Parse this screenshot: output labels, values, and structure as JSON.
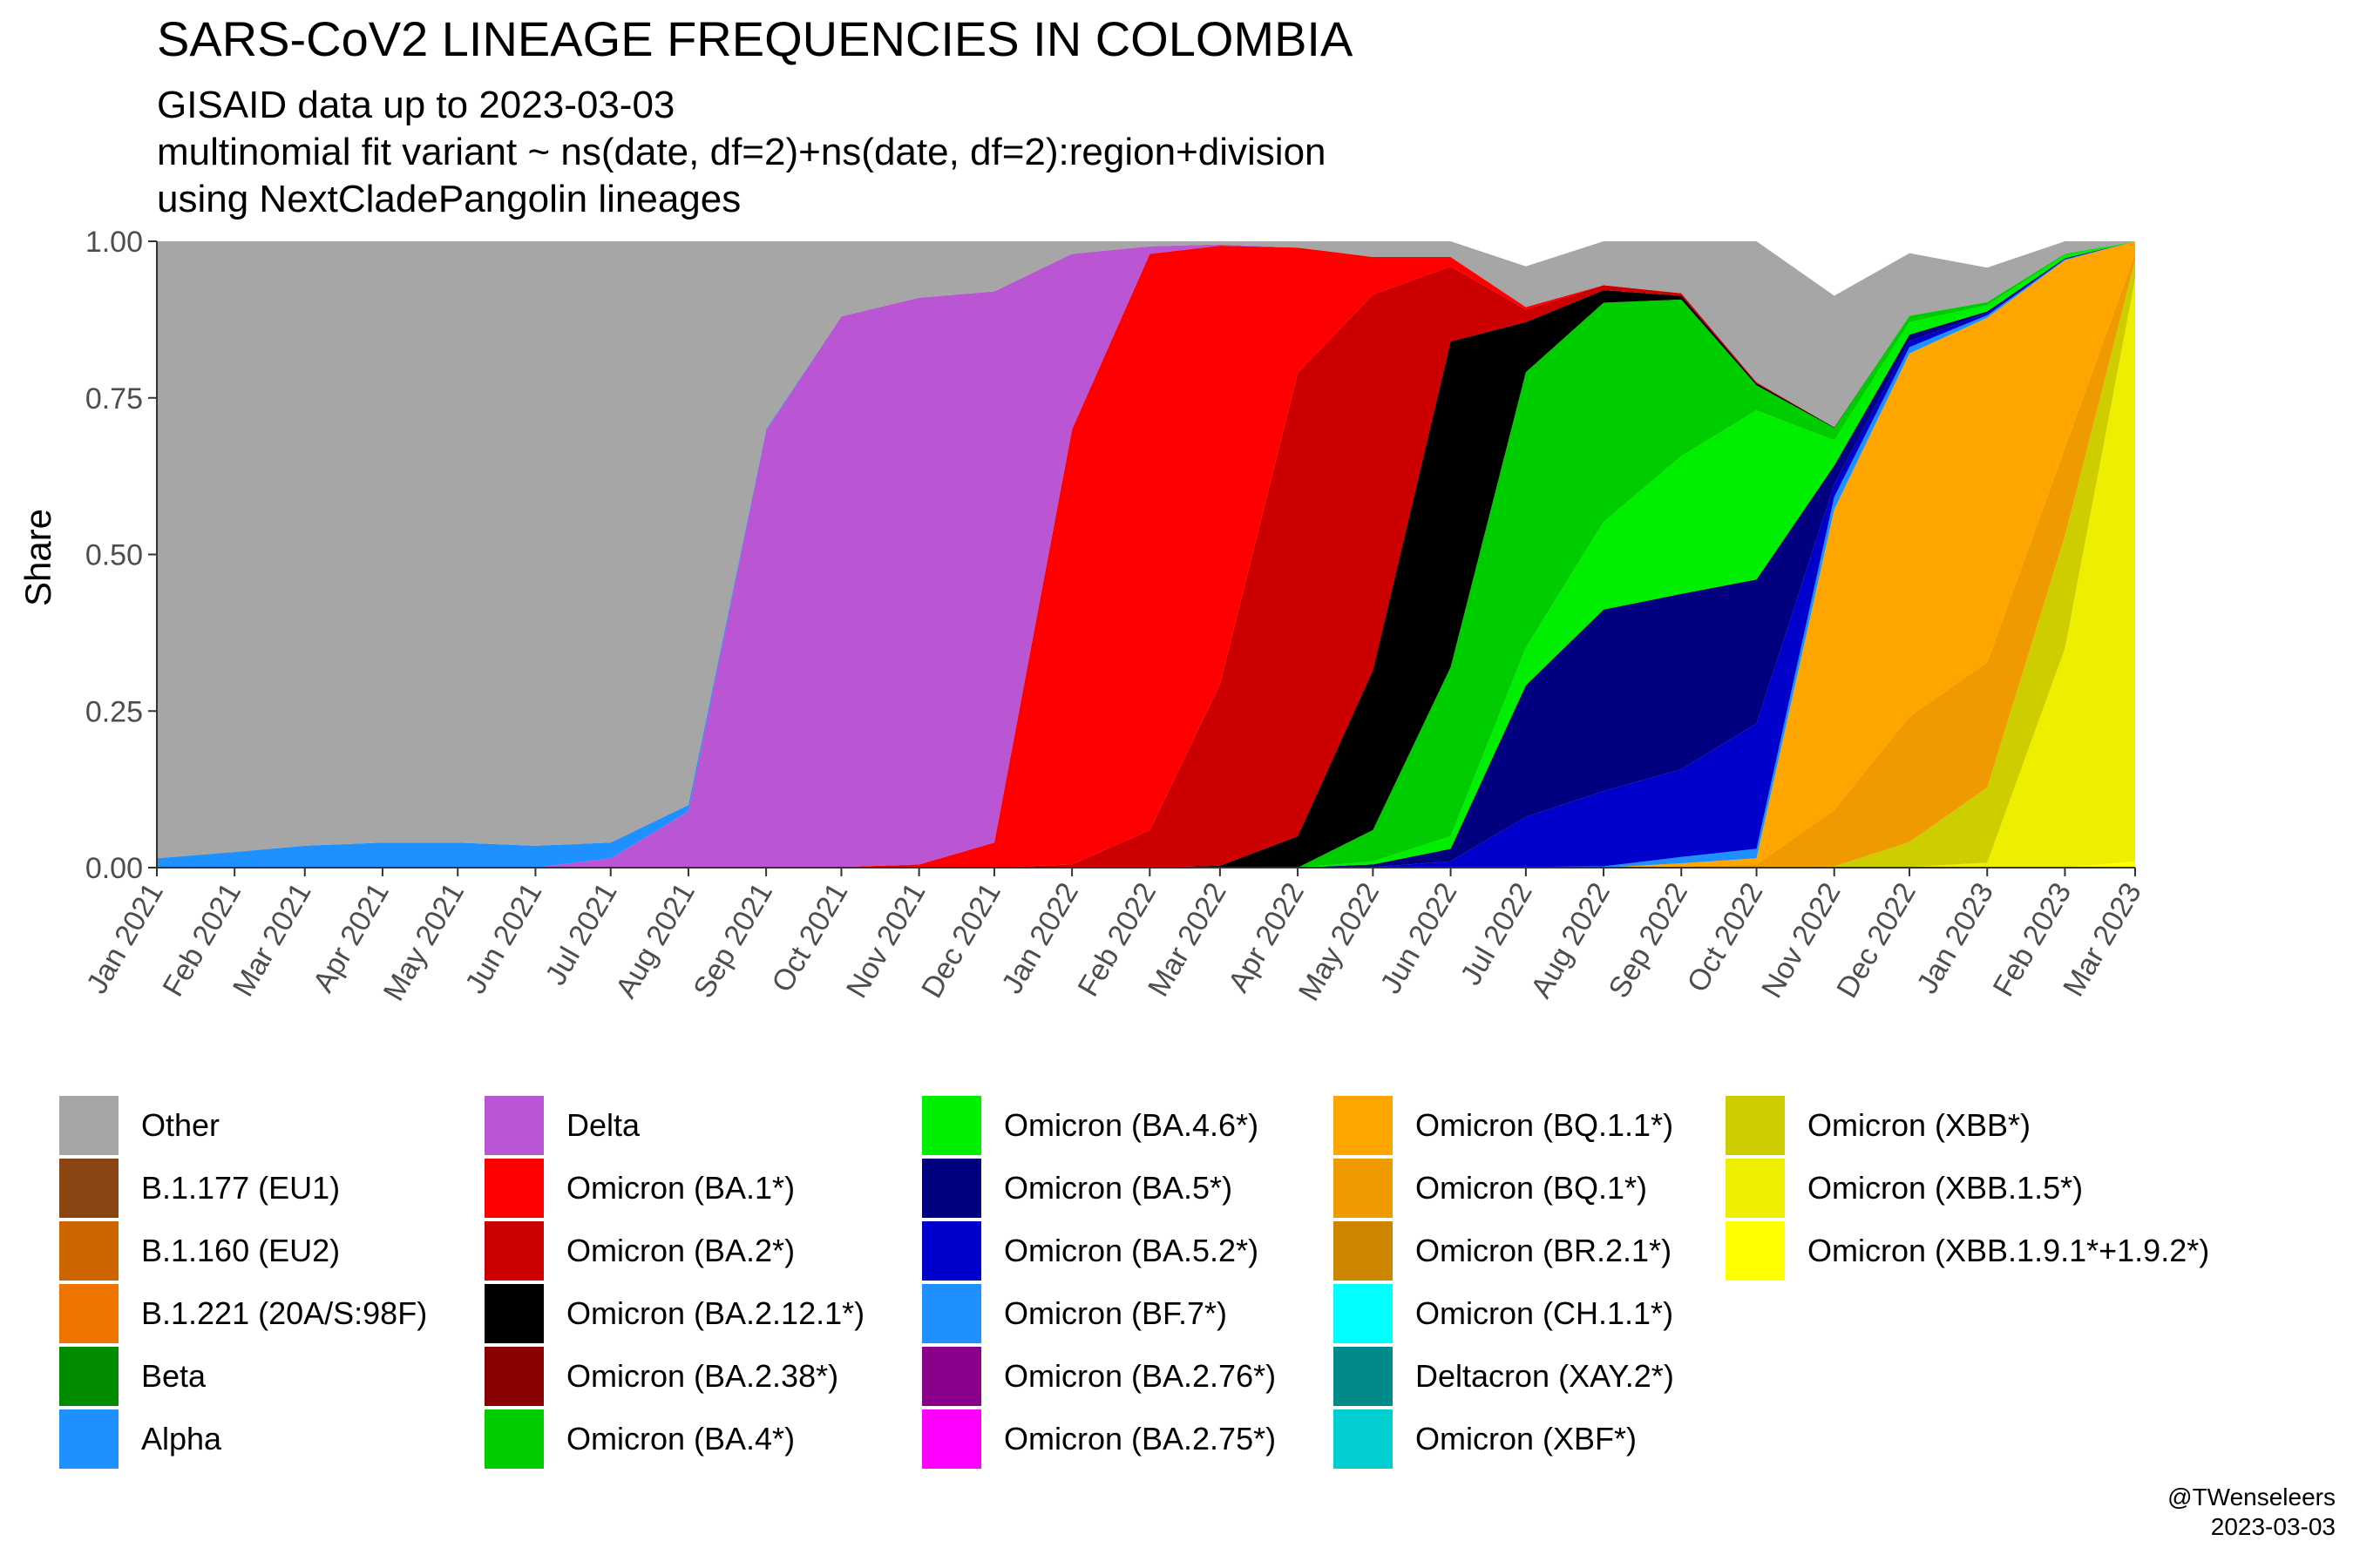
{
  "chart_data": {
    "type": "area",
    "stacked": true,
    "title": "SARS-CoV2 LINEAGE FREQUENCIES IN COLOMBIA",
    "subtitle": [
      "GISAID data up to 2023-03-03",
      "multinomial fit variant ~ ns(date, df=2)+ns(date, df=2):region+division",
      "using NextCladePangolin lineages"
    ],
    "ylabel": "Share",
    "ylim": [
      0,
      1
    ],
    "yticks": [
      "0.00",
      "0.25",
      "0.50",
      "0.75",
      "1.00"
    ],
    "xticks": [
      "Jan 2021",
      "Feb 2021",
      "Mar 2021",
      "Apr 2021",
      "May 2021",
      "Jun 2021",
      "Jul 2021",
      "Aug 2021",
      "Sep 2021",
      "Oct 2021",
      "Nov 2021",
      "Dec 2021",
      "Jan 2022",
      "Feb 2022",
      "Mar 2022",
      "Apr 2022",
      "May 2022",
      "Jun 2022",
      "Jul 2022",
      "Aug 2022",
      "Sep 2022",
      "Oct 2022",
      "Nov 2022",
      "Dec 2022",
      "Jan 2023",
      "Feb 2023",
      "Mar 2023"
    ],
    "x": [
      "2021-01-01",
      "2021-02-01",
      "2021-03-01",
      "2021-04-01",
      "2021-05-01",
      "2021-06-01",
      "2021-07-01",
      "2021-08-01",
      "2021-09-01",
      "2021-10-01",
      "2021-11-01",
      "2021-12-01",
      "2022-01-01",
      "2022-02-01",
      "2022-03-01",
      "2022-04-01",
      "2022-05-01",
      "2022-06-01",
      "2022-07-01",
      "2022-08-01",
      "2022-09-01",
      "2022-10-01",
      "2022-11-01",
      "2022-12-01",
      "2023-01-01",
      "2023-02-01",
      "2023-03-01"
    ],
    "grid": false,
    "legend_position": "bottom",
    "series": [
      {
        "name": "Other",
        "color": "#A6A6A6",
        "values": [
          0.985,
          0.975,
          0.965,
          0.96,
          0.96,
          0.965,
          0.96,
          0.9,
          0.3,
          0.12,
          0.09,
          0.08,
          0.02,
          0.008,
          0.005,
          0.01,
          0.025,
          0.045,
          0.065,
          0.075,
          0.11,
          0.24,
          0.21,
          0.1,
          0.055,
          0.02,
          0.0
        ]
      },
      {
        "name": "B.1.177 (EU1)",
        "color": "#8B4513",
        "values": [
          0,
          0,
          0,
          0,
          0,
          0,
          0,
          0,
          0,
          0,
          0,
          0,
          0,
          0,
          0,
          0,
          0,
          0,
          0,
          0,
          0,
          0,
          0,
          0,
          0,
          0,
          0
        ]
      },
      {
        "name": "B.1.160 (EU2)",
        "color": "#CD6600",
        "values": [
          0,
          0,
          0,
          0,
          0,
          0,
          0,
          0,
          0,
          0,
          0,
          0,
          0,
          0,
          0,
          0,
          0,
          0,
          0,
          0,
          0,
          0,
          0,
          0,
          0,
          0,
          0
        ]
      },
      {
        "name": "B.1.221 (20A/S:98F)",
        "color": "#EE7600",
        "values": [
          0,
          0,
          0,
          0,
          0,
          0,
          0,
          0,
          0,
          0,
          0,
          0,
          0,
          0,
          0,
          0,
          0,
          0,
          0,
          0,
          0,
          0,
          0,
          0,
          0,
          0,
          0
        ]
      },
      {
        "name": "Beta",
        "color": "#008B00",
        "values": [
          0,
          0,
          0,
          0,
          0,
          0,
          0,
          0,
          0,
          0,
          0,
          0,
          0,
          0,
          0,
          0,
          0,
          0,
          0,
          0,
          0,
          0,
          0,
          0,
          0,
          0,
          0
        ]
      },
      {
        "name": "Alpha",
        "color": "#1E90FF",
        "values": [
          0.015,
          0.025,
          0.035,
          0.04,
          0.04,
          0.035,
          0.025,
          0.01,
          0.002,
          0,
          0,
          0,
          0,
          0,
          0,
          0,
          0,
          0,
          0,
          0,
          0,
          0,
          0,
          0,
          0,
          0,
          0
        ]
      },
      {
        "name": "Delta",
        "color": "#BA55D3",
        "values": [
          0,
          0,
          0,
          0,
          0,
          0,
          0.015,
          0.09,
          0.698,
          0.879,
          0.905,
          0.88,
          0.28,
          0.012,
          0.002,
          0,
          0,
          0,
          0,
          0,
          0,
          0,
          0,
          0,
          0,
          0,
          0
        ]
      },
      {
        "name": "Omicron (BA.1*)",
        "color": "#FF0000",
        "values": [
          0,
          0,
          0,
          0,
          0,
          0,
          0,
          0,
          0,
          0.001,
          0.005,
          0.04,
          0.695,
          0.92,
          0.7,
          0.2,
          0.06,
          0.015,
          0.004,
          0,
          0,
          0,
          0,
          0,
          0,
          0,
          0
        ]
      },
      {
        "name": "Omicron (BA.2*)",
        "color": "#CC0000",
        "values": [
          0,
          0,
          0,
          0,
          0,
          0,
          0,
          0,
          0,
          0,
          0,
          0,
          0.005,
          0.06,
          0.29,
          0.74,
          0.6,
          0.12,
          0.02,
          0.008,
          0.004,
          0.002,
          0,
          0,
          0,
          0,
          0
        ]
      },
      {
        "name": "Omicron (BA.2.12.1*)",
        "color": "#000000",
        "values": [
          0,
          0,
          0,
          0,
          0,
          0,
          0,
          0,
          0,
          0,
          0,
          0,
          0,
          0,
          0.003,
          0.05,
          0.255,
          0.52,
          0.08,
          0.02,
          0.006,
          0.003,
          0.001,
          0,
          0,
          0,
          0
        ]
      },
      {
        "name": "Omicron (BA.2.38*)",
        "color": "#8B0000",
        "values": [
          0,
          0,
          0,
          0,
          0,
          0,
          0,
          0,
          0,
          0,
          0,
          0,
          0,
          0,
          0,
          0,
          0,
          0,
          0,
          0,
          0,
          0,
          0,
          0,
          0,
          0,
          0
        ]
      },
      {
        "name": "Omicron (BA.4*)",
        "color": "#00CD00",
        "values": [
          0,
          0,
          0,
          0,
          0,
          0,
          0,
          0,
          0,
          0,
          0,
          0,
          0,
          0,
          0,
          0,
          0.05,
          0.27,
          0.44,
          0.35,
          0.25,
          0.04,
          0.02,
          0.01,
          0.005,
          0.002,
          0
        ]
      },
      {
        "name": "Omicron (BA.4.6*)",
        "color": "#00EE00",
        "values": [
          0,
          0,
          0,
          0,
          0,
          0,
          0,
          0,
          0,
          0,
          0,
          0,
          0,
          0,
          0,
          0,
          0.005,
          0.02,
          0.06,
          0.14,
          0.22,
          0.27,
          0.04,
          0.02,
          0.01,
          0.005,
          0
        ]
      },
      {
        "name": "Omicron (BA.5*)",
        "color": "#000080",
        "values": [
          0,
          0,
          0,
          0,
          0,
          0,
          0,
          0,
          0,
          0,
          0,
          0,
          0,
          0,
          0,
          0,
          0.004,
          0.02,
          0.21,
          0.29,
          0.28,
          0.23,
          0.03,
          0.01,
          0.003,
          0.001,
          0
        ]
      },
      {
        "name": "Omicron (BA.5.2*)",
        "color": "#0000CD",
        "values": [
          0,
          0,
          0,
          0,
          0,
          0,
          0,
          0,
          0,
          0,
          0,
          0,
          0,
          0,
          0,
          0,
          0.001,
          0.01,
          0.08,
          0.12,
          0.14,
          0.2,
          0.02,
          0.01,
          0.003,
          0.001,
          0
        ]
      },
      {
        "name": "Omicron (BF.7*)",
        "color": "#1E90FF",
        "values": [
          0,
          0,
          0,
          0,
          0,
          0,
          0,
          0,
          0,
          0,
          0,
          0,
          0,
          0,
          0,
          0,
          0,
          0,
          0.001,
          0.002,
          0.01,
          0.015,
          0.02,
          0.01,
          0.004,
          0.001,
          0
        ]
      },
      {
        "name": "Omicron (BA.2.76*)",
        "color": "#8B008B",
        "values": [
          0,
          0,
          0,
          0,
          0,
          0,
          0,
          0,
          0,
          0,
          0,
          0,
          0,
          0,
          0,
          0,
          0,
          0,
          0,
          0,
          0,
          0,
          0,
          0,
          0,
          0,
          0
        ]
      },
      {
        "name": "Omicron (BA.2.75*)",
        "color": "#FF00FF",
        "values": [
          0,
          0,
          0,
          0,
          0,
          0,
          0,
          0,
          0,
          0,
          0,
          0,
          0,
          0,
          0,
          0,
          0,
          0,
          0,
          0,
          0,
          0,
          0,
          0,
          0,
          0,
          0
        ]
      },
      {
        "name": "Omicron (BQ.1.1*)",
        "color": "#FFA500",
        "values": [
          0,
          0,
          0,
          0,
          0,
          0,
          0,
          0,
          0,
          0,
          0,
          0,
          0,
          0,
          0,
          0,
          0,
          0,
          0,
          0,
          0.005,
          0.01,
          0.48,
          0.58,
          0.55,
          0.3,
          0.02
        ]
      },
      {
        "name": "Omicron (BQ.1*)",
        "color": "#EE9A00",
        "values": [
          0,
          0,
          0,
          0,
          0,
          0,
          0,
          0,
          0,
          0,
          0,
          0,
          0,
          0,
          0,
          0,
          0,
          0,
          0,
          0,
          0.002,
          0.005,
          0.09,
          0.2,
          0.2,
          0.14,
          0.01
        ]
      },
      {
        "name": "Omicron (BR.2.1*)",
        "color": "#CD8500",
        "values": [
          0,
          0,
          0,
          0,
          0,
          0,
          0,
          0,
          0,
          0,
          0,
          0,
          0,
          0,
          0,
          0,
          0,
          0,
          0,
          0,
          0,
          0,
          0,
          0,
          0,
          0,
          0
        ]
      },
      {
        "name": "Omicron (CH.1.1*)",
        "color": "#00FFFF",
        "values": [
          0,
          0,
          0,
          0,
          0,
          0,
          0,
          0,
          0,
          0,
          0,
          0,
          0,
          0,
          0,
          0,
          0,
          0,
          0,
          0,
          0,
          0,
          0,
          0,
          0,
          0,
          0
        ]
      },
      {
        "name": "Deltacron (XAY.2*)",
        "color": "#008B8B",
        "values": [
          0,
          0,
          0,
          0,
          0,
          0,
          0,
          0,
          0,
          0,
          0,
          0,
          0,
          0,
          0,
          0,
          0,
          0,
          0,
          0,
          0,
          0,
          0,
          0,
          0,
          0,
          0
        ]
      },
      {
        "name": "Omicron (XBF*)",
        "color": "#00CED1",
        "values": [
          0,
          0,
          0,
          0,
          0,
          0,
          0,
          0,
          0,
          0,
          0,
          0,
          0,
          0,
          0,
          0,
          0,
          0,
          0,
          0,
          0,
          0,
          0,
          0,
          0,
          0,
          0
        ]
      },
      {
        "name": "Omicron (XBB*)",
        "color": "#CDCD00",
        "values": [
          0,
          0,
          0,
          0,
          0,
          0,
          0,
          0,
          0,
          0,
          0,
          0,
          0,
          0,
          0,
          0,
          0,
          0,
          0,
          0,
          0,
          0,
          0.002,
          0.04,
          0.12,
          0.18,
          0.03
        ]
      },
      {
        "name": "Omicron (XBB.1.5*)",
        "color": "#EEEE00",
        "values": [
          0,
          0,
          0,
          0,
          0,
          0,
          0,
          0,
          0,
          0,
          0,
          0,
          0,
          0,
          0,
          0,
          0,
          0,
          0,
          0,
          0,
          0,
          0,
          0.001,
          0.008,
          0.35,
          0.93
        ]
      },
      {
        "name": "Omicron (XBB.1.9.1*+1.9.2*)",
        "color": "#FFFF00",
        "values": [
          0,
          0,
          0,
          0,
          0,
          0,
          0,
          0,
          0,
          0,
          0,
          0,
          0,
          0,
          0,
          0,
          0,
          0,
          0,
          0,
          0,
          0,
          0,
          0,
          0,
          0,
          0.01
        ]
      }
    ]
  },
  "legend_columns": [
    [
      0,
      1,
      2,
      3,
      4,
      5
    ],
    [
      6,
      7,
      8,
      9,
      10,
      11
    ],
    [
      12,
      13,
      14,
      15,
      16,
      17
    ],
    [
      18,
      19,
      20,
      21,
      22,
      23
    ],
    [
      24,
      25,
      26
    ]
  ],
  "credit": {
    "handle": "@TWenseleers",
    "date": "2023-03-03"
  }
}
